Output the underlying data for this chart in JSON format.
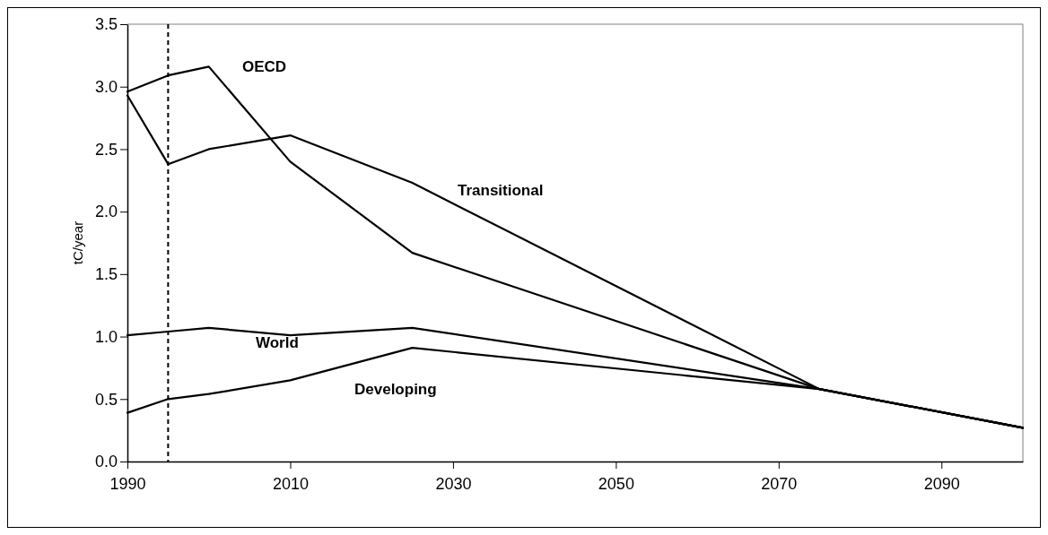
{
  "chart_data": {
    "type": "line",
    "ylabel": "tC/year",
    "x": [
      1990,
      1995,
      2000,
      2010,
      2025,
      2075,
      2100
    ],
    "series": [
      {
        "name": "OECD",
        "color": "#000000",
        "values": [
          2.96,
          3.09,
          3.16,
          2.4,
          1.67,
          0.58,
          0.27
        ]
      },
      {
        "name": "Transitional",
        "color": "#000000",
        "values": [
          2.93,
          2.38,
          2.5,
          2.61,
          2.23,
          0.58,
          0.27
        ]
      },
      {
        "name": "World",
        "color": "#000000",
        "values": [
          1.01,
          1.04,
          1.07,
          1.01,
          1.07,
          0.58,
          0.27
        ]
      },
      {
        "name": "Developing",
        "color": "#000000",
        "values": [
          0.39,
          0.5,
          0.54,
          0.65,
          0.91,
          0.58,
          0.27
        ]
      }
    ],
    "xlim": [
      1990,
      2100
    ],
    "xticks": [
      1990,
      2010,
      2030,
      2050,
      2070,
      2090
    ],
    "ylim": [
      0,
      3.5
    ],
    "yticks": [
      {
        "value": 0,
        "label": "0.0"
      },
      {
        "value": 0.5,
        "label": "0.5"
      },
      {
        "value": 1,
        "label": "1.0"
      },
      {
        "value": 1.5,
        "label": "1.5"
      },
      {
        "value": 2,
        "label": "2.0"
      },
      {
        "value": 2.5,
        "label": "2.5"
      },
      {
        "value": 3,
        "label": "3.0"
      },
      {
        "value": 3.5,
        "label": "3.5"
      }
    ],
    "ref_lines": [
      {
        "axis": "x",
        "value": 1995,
        "color": "#000000",
        "line_style": "dashed"
      }
    ],
    "grid": false,
    "marker": "none",
    "line_style": "solid"
  }
}
